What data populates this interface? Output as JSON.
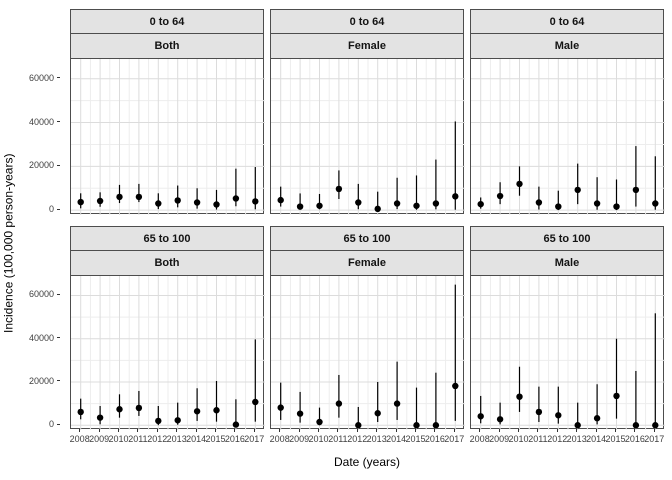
{
  "figure": {
    "description": "Faceted pointrange plot of incidence by year, faceted by age group (rows) and sex (columns)",
    "colors": {
      "background": "#ffffff",
      "strip_background": "#E3E3E3",
      "panel_border": "#4D4D4D",
      "grid_major": "#DCDCDC",
      "grid_minor": "#EDEDED",
      "point": "#000000",
      "error_bar": "#000000",
      "tick_label": "#404040",
      "axis_title": "#000000"
    }
  },
  "chart_data": {
    "type": "scatter",
    "subtype": "pointrange-with-error-bars",
    "title": "",
    "xlabel": "Date (years)",
    "ylabel": "Incidence (100,000 person-years)",
    "x": [
      2008,
      2009,
      2010,
      2011,
      2012,
      2013,
      2014,
      2015,
      2016,
      2017
    ],
    "xlim": [
      2007.55,
      2017.45
    ],
    "ylim": [
      -2200,
      69000
    ],
    "y_major_ticks": [
      0,
      20000,
      40000,
      60000
    ],
    "y_minor_ticks": [
      10000,
      30000,
      50000
    ],
    "grid": true,
    "legend": "none",
    "facet_row_labels": [
      "0 to 64",
      "65 to 100"
    ],
    "facet_col_labels": [
      "Both",
      "Female",
      "Male"
    ],
    "panels": [
      {
        "age_group": "0 to 64",
        "sex": "Both",
        "values": [
          3700,
          4200,
          6050,
          6050,
          3050,
          4450,
          3500,
          2600,
          5350,
          4000
        ],
        "lower": [
          850,
          1550,
          3250,
          3700,
          500,
          1300,
          700,
          300,
          1800,
          400
        ],
        "upper": [
          7700,
          8150,
          11550,
          12000,
          7700,
          11250,
          10000,
          9250,
          18950,
          19700
        ]
      },
      {
        "age_group": "0 to 64",
        "sex": "Female",
        "values": [
          4600,
          1650,
          2000,
          9700,
          3500,
          600,
          3050,
          2000,
          3050,
          6300
        ],
        "lower": [
          1650,
          200,
          400,
          5100,
          450,
          50,
          500,
          200,
          400,
          200
        ],
        "upper": [
          10750,
          7650,
          7400,
          18150,
          12000,
          8450,
          14800,
          15850,
          23100,
          40500
        ]
      },
      {
        "age_group": "0 to 64",
        "sex": "Male",
        "values": [
          2750,
          6450,
          12000,
          3500,
          1650,
          9250,
          3050,
          1650,
          9250,
          3050
        ],
        "lower": [
          700,
          2750,
          6600,
          300,
          50,
          2750,
          200,
          50,
          1650,
          200
        ],
        "upper": [
          5800,
          12750,
          20000,
          10750,
          8900,
          21250,
          15050,
          14000,
          29250,
          24600
        ]
      },
      {
        "age_group": "65 to 100",
        "sex": "Both",
        "values": [
          6150,
          3500,
          7400,
          8000,
          2000,
          2300,
          6450,
          6950,
          300,
          10750
        ],
        "lower": [
          2750,
          450,
          3500,
          4300,
          50,
          250,
          2000,
          1650,
          0,
          1650
        ],
        "upper": [
          12300,
          8900,
          14300,
          15850,
          8900,
          10450,
          17100,
          20450,
          12000,
          39700
        ]
      },
      {
        "age_group": "65 to 100",
        "sex": "Female",
        "values": [
          8150,
          5350,
          1500,
          10000,
          0,
          5550,
          10000,
          0,
          0,
          18150
        ],
        "lower": [
          2450,
          1200,
          0,
          3500,
          0,
          1500,
          2450,
          0,
          0,
          2000
        ],
        "upper": [
          19700,
          15400,
          8150,
          23250,
          8450,
          20000,
          29400,
          17400,
          24300,
          65000
        ]
      },
      {
        "age_group": "65 to 100",
        "sex": "Male",
        "values": [
          4150,
          2750,
          13200,
          6150,
          4600,
          0,
          3250,
          13550,
          0,
          0
        ],
        "lower": [
          900,
          400,
          6150,
          1500,
          750,
          0,
          400,
          3050,
          0,
          0
        ],
        "upper": [
          13550,
          10450,
          27050,
          17850,
          17850,
          10450,
          18950,
          40000,
          25100,
          51750
        ]
      }
    ]
  }
}
